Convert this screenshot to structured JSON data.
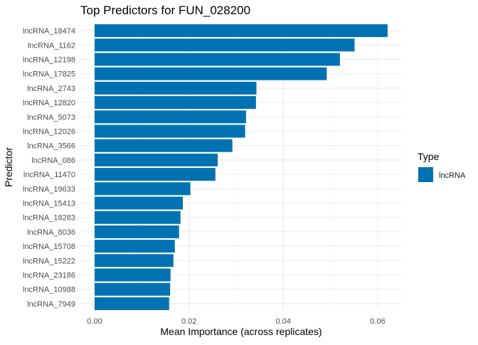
{
  "chart_data": {
    "type": "bar",
    "orientation": "horizontal",
    "title": "Top Predictors for FUN_028200",
    "xlabel": "Mean Importance (across replicates)",
    "ylabel": "Predictor",
    "xlim": [
      0,
      0.065
    ],
    "xticks": [
      0.0,
      0.02,
      0.04,
      0.06
    ],
    "xtick_labels": [
      "0.00",
      "0.02",
      "0.04",
      "0.06"
    ],
    "grid": true,
    "legend": {
      "title": "Type",
      "position": "right",
      "entries": [
        {
          "label": "lncRNA",
          "color": "#0072B2"
        }
      ]
    },
    "categories": [
      "lncRNA_18474",
      "lncRNA_1162",
      "lncRNA_12198",
      "lncRNA_17825",
      "lncRNA_2743",
      "lncRNA_12820",
      "lncRNA_5073",
      "lncRNA_12026",
      "lncRNA_3566",
      "lncRNA_086",
      "lncRNA_11470",
      "lncRNA_19633",
      "lncRNA_15413",
      "lncRNA_18283",
      "lncRNA_8036",
      "lncRNA_15708",
      "lncRNA_15222",
      "lncRNA_23186",
      "lncRNA_10988",
      "lncRNA_7949"
    ],
    "values": [
      0.0621,
      0.0551,
      0.052,
      0.0492,
      0.0343,
      0.0342,
      0.0321,
      0.0319,
      0.0292,
      0.0261,
      0.0256,
      0.0203,
      0.0187,
      0.0182,
      0.0179,
      0.017,
      0.0167,
      0.0161,
      0.016,
      0.0158
    ],
    "bar_color": "#0072B2"
  }
}
